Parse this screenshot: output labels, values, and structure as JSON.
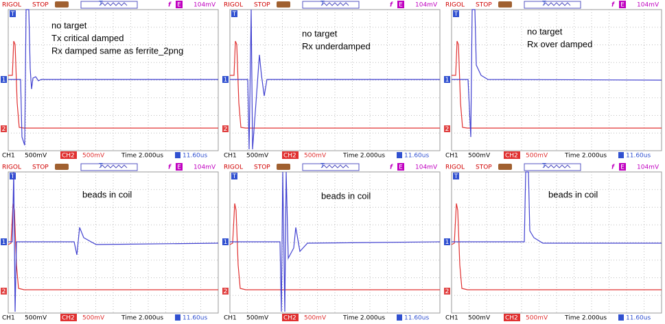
{
  "panels": [
    {
      "header": {
        "brand": "RIGOL",
        "status": "STOP",
        "trigger_icon": "f",
        "trigger_source": "E",
        "trigger_level": "104mV"
      },
      "markers": {
        "trigger": "T",
        "ch1": "1",
        "ch2": "2"
      },
      "annotation": [
        "no target",
        "Tx critical damped",
        "Rx damped same as ferrite_2png"
      ],
      "footer": {
        "ch1": "CH1",
        "ch1_scale": "500mV",
        "ch2": "CH2",
        "ch2_scale": "500mV",
        "time": "Time 2.000us",
        "offset": "11.60us"
      }
    },
    {
      "header": {
        "brand": "RIGOL",
        "status": "STOP",
        "trigger_icon": "f",
        "trigger_source": "E",
        "trigger_level": "104mV"
      },
      "markers": {
        "trigger": "T",
        "ch1": "1",
        "ch2": "2"
      },
      "annotation": [
        "no target",
        "Rx underdamped"
      ],
      "footer": {
        "ch1": "CH1",
        "ch1_scale": "500mV",
        "ch2": "CH2",
        "ch2_scale": "500mV",
        "time": "Time 2.000us",
        "offset": "11.60us"
      }
    },
    {
      "header": {
        "brand": "RIGOL",
        "status": "STOP",
        "trigger_icon": "f",
        "trigger_source": "E",
        "trigger_level": "104mV"
      },
      "markers": {
        "trigger": "T",
        "ch1": "1",
        "ch2": "2"
      },
      "annotation": [
        "no target",
        "Rx over damped"
      ],
      "footer": {
        "ch1": "CH1",
        "ch1_scale": "500mV",
        "ch2": "CH2",
        "ch2_scale": "500mV",
        "time": "Time 2.000us",
        "offset": "11.60us"
      }
    },
    {
      "header": {
        "brand": "RIGOL",
        "status": "STOP",
        "trigger_icon": "f",
        "trigger_source": "E",
        "trigger_level": "104mV"
      },
      "markers": {
        "trigger": "T",
        "ch1": "1",
        "ch2": "2"
      },
      "annotation": [
        "beads in coil"
      ],
      "footer": {
        "ch1": "CH1",
        "ch1_scale": "500mV",
        "ch2": "CH2",
        "ch2_scale": "500mV",
        "time": "Time 2.000us",
        "offset": "11.60us"
      }
    },
    {
      "header": {
        "brand": "RIGOL",
        "status": "STOP",
        "trigger_icon": "f",
        "trigger_source": "E",
        "trigger_level": "104mV"
      },
      "markers": {
        "trigger": "T",
        "ch1": "1",
        "ch2": "2"
      },
      "annotation": [
        "beads in coil"
      ],
      "footer": {
        "ch1": "CH1",
        "ch1_scale": "500mV",
        "ch2": "CH2",
        "ch2_scale": "500mV",
        "time": "Time 2.000us",
        "offset": "11.60us"
      }
    },
    {
      "header": {
        "brand": "RIGOL",
        "status": "STOP",
        "trigger_icon": "f",
        "trigger_source": "E",
        "trigger_level": "104mV"
      },
      "markers": {
        "trigger": "T",
        "ch1": "1",
        "ch2": "2"
      },
      "annotation": [
        "beads in coil"
      ],
      "footer": {
        "ch1": "CH1",
        "ch1_scale": "500mV",
        "ch2": "CH2",
        "ch2_scale": "500mV",
        "time": "Time 2.000us",
        "offset": "11.60us"
      }
    }
  ]
}
